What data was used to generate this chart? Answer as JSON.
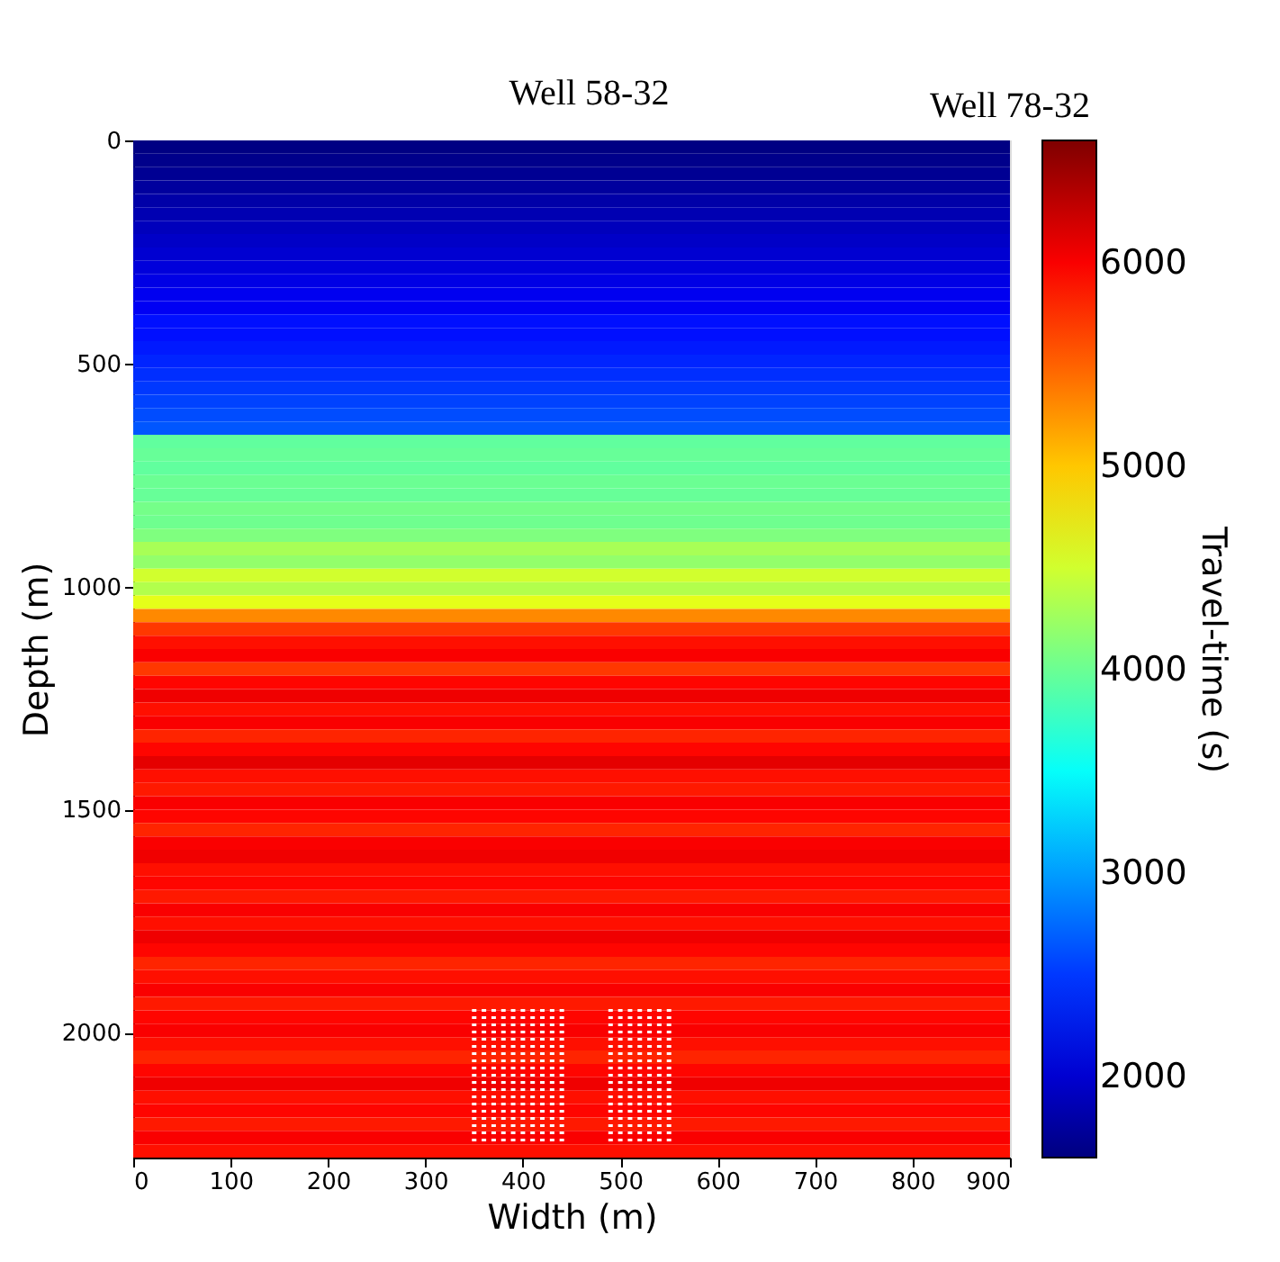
{
  "chart_data": {
    "type": "heatmap",
    "xlabel": "Width (m)",
    "ylabel": "Depth (m)",
    "clabel": "Travel-time (s)",
    "xlim": [
      0,
      900
    ],
    "xticks": [
      0,
      100,
      200,
      300,
      400,
      500,
      600,
      700,
      800,
      900
    ],
    "ylim": [
      2280,
      0
    ],
    "yticks": [
      0,
      500,
      1000,
      1500,
      2000
    ],
    "clim": [
      1600,
      6600
    ],
    "cticks": [
      2000,
      3000,
      4000,
      5000,
      6000
    ],
    "grid": false,
    "cells": [
      [
        1620
      ],
      [
        1660
      ],
      [
        1700
      ],
      [
        1750
      ],
      [
        1800
      ],
      [
        1850
      ],
      [
        1900
      ],
      [
        1950
      ],
      [
        2000
      ],
      [
        2050
      ],
      [
        2100
      ],
      [
        2150
      ],
      [
        2170
      ],
      [
        2300
      ],
      [
        2300
      ],
      [
        2350
      ],
      [
        2400
      ],
      [
        2450
      ],
      [
        2500
      ],
      [
        2550
      ],
      [
        2600
      ],
      [
        2650
      ],
      [
        3950
      ],
      [
        3980
      ],
      [
        3950
      ],
      [
        4000
      ],
      [
        3980
      ],
      [
        4050
      ],
      [
        4020
      ],
      [
        4100
      ],
      [
        4300
      ],
      [
        4200
      ],
      [
        4500
      ],
      [
        4350
      ],
      [
        4600
      ],
      [
        5300
      ],
      [
        5700
      ],
      [
        5900
      ],
      [
        6000
      ],
      [
        5700
      ],
      [
        5950
      ],
      [
        6050
      ],
      [
        5900
      ],
      [
        6000
      ],
      [
        5800
      ],
      [
        5950
      ],
      [
        6100
      ],
      [
        5900
      ],
      [
        5850
      ],
      [
        6000
      ],
      [
        5950
      ],
      [
        5800
      ],
      [
        6000
      ],
      [
        6050
      ],
      [
        5900
      ],
      [
        5950
      ],
      [
        5850
      ],
      [
        6000
      ],
      [
        5900
      ],
      [
        6050
      ],
      [
        5950
      ],
      [
        5800
      ],
      [
        5900
      ],
      [
        6000
      ],
      [
        5850
      ],
      [
        5950
      ],
      [
        6000
      ],
      [
        5900
      ],
      [
        5800
      ],
      [
        5950
      ],
      [
        6050
      ],
      [
        5900
      ],
      [
        5950
      ],
      [
        5850
      ],
      [
        6000
      ],
      [
        5900
      ]
    ],
    "series": [
      {
        "type": "line",
        "color": "#ffffff",
        "line_style": "dotted",
        "x": [
          350,
          350
        ],
        "values": [
          1947,
          2250
        ]
      },
      {
        "type": "line",
        "color": "#ffffff",
        "line_style": "dotted",
        "x": [
          360,
          360
        ],
        "values": [
          1947,
          2250
        ]
      },
      {
        "type": "line",
        "color": "#ffffff",
        "line_style": "dotted",
        "x": [
          370,
          370
        ],
        "values": [
          1947,
          2250
        ]
      },
      {
        "type": "line",
        "color": "#ffffff",
        "line_style": "dotted",
        "x": [
          380,
          380
        ],
        "values": [
          1947,
          2250
        ]
      },
      {
        "type": "line",
        "color": "#ffffff",
        "line_style": "dotted",
        "x": [
          390,
          390
        ],
        "values": [
          1947,
          2250
        ]
      },
      {
        "type": "line",
        "color": "#ffffff",
        "line_style": "dotted",
        "x": [
          400,
          400
        ],
        "values": [
          1947,
          2250
        ]
      },
      {
        "type": "line",
        "color": "#ffffff",
        "line_style": "dotted",
        "x": [
          410,
          410
        ],
        "values": [
          1947,
          2250
        ]
      },
      {
        "type": "line",
        "color": "#ffffff",
        "line_style": "dotted",
        "x": [
          420,
          420
        ],
        "values": [
          1947,
          2250
        ]
      },
      {
        "type": "line",
        "color": "#ffffff",
        "line_style": "dotted",
        "x": [
          430,
          430
        ],
        "values": [
          1947,
          2250
        ]
      },
      {
        "type": "line",
        "color": "#ffffff",
        "line_style": "dotted",
        "x": [
          440,
          440
        ],
        "values": [
          1947,
          2250
        ]
      },
      {
        "type": "line",
        "color": "#ffffff",
        "line_style": "dotted",
        "x": [
          490,
          490
        ],
        "values": [
          1947,
          2250
        ]
      },
      {
        "type": "line",
        "color": "#ffffff",
        "line_style": "dotted",
        "x": [
          500,
          500
        ],
        "values": [
          1947,
          2250
        ]
      },
      {
        "type": "line",
        "color": "#ffffff",
        "line_style": "dotted",
        "x": [
          510,
          510
        ],
        "values": [
          1947,
          2250
        ]
      },
      {
        "type": "line",
        "color": "#ffffff",
        "line_style": "dotted",
        "x": [
          520,
          520
        ],
        "values": [
          1947,
          2250
        ]
      },
      {
        "type": "line",
        "color": "#ffffff",
        "line_style": "dotted",
        "x": [
          530,
          530
        ],
        "values": [
          1947,
          2250
        ]
      },
      {
        "type": "line",
        "color": "#ffffff",
        "line_style": "dotted",
        "x": [
          540,
          540
        ],
        "values": [
          1947,
          2250
        ]
      },
      {
        "type": "line",
        "color": "#ffffff",
        "line_style": "dotted",
        "x": [
          550,
          550
        ],
        "values": [
          1947,
          2250
        ]
      }
    ],
    "annotations": [
      "Well 58-32",
      "Well 78-32"
    ]
  }
}
